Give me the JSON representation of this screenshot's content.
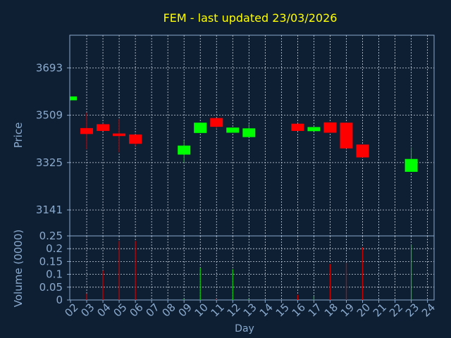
{
  "colors": {
    "background": "#0f1f33",
    "plot_border": "#8aaace",
    "grid": "#c8d4e0",
    "title": "#ffff00",
    "axis_text": "#8aaace",
    "bull": "#00ff00",
    "bear": "#ff0000",
    "wick_bull": "#00cc00",
    "wick_bear": "#cc0000"
  },
  "chart_data": [
    {
      "type": "candlestick",
      "title": "FEM - last updated 23/03/2026",
      "ylabel": "Price",
      "xlabel": "",
      "grid": true,
      "ylim": [
        3040,
        3820
      ],
      "yticks": [
        3141,
        3325,
        3509,
        3693
      ],
      "x_categories": [
        "02",
        "03",
        "04",
        "05",
        "06",
        "07",
        "08",
        "09",
        "10",
        "11",
        "12",
        "13",
        "14",
        "15",
        "16",
        "17",
        "18",
        "19",
        "20",
        "21",
        "22",
        "23",
        "24"
      ],
      "candles": [
        {
          "x": "02",
          "open": 3567,
          "close": 3582,
          "high": 3582,
          "low": 3567
        },
        {
          "x": "03",
          "open": 3459,
          "close": 3436,
          "high": 3519,
          "low": 3377
        },
        {
          "x": "04",
          "open": 3474,
          "close": 3448,
          "high": 3477,
          "low": 3448
        },
        {
          "x": "05",
          "open": 3438,
          "close": 3428,
          "high": 3494,
          "low": 3365
        },
        {
          "x": "06",
          "open": 3434,
          "close": 3398,
          "high": 3434,
          "low": 3390
        },
        {
          "x": "09",
          "open": 3356,
          "close": 3391,
          "high": 3411,
          "low": 3325
        },
        {
          "x": "10",
          "open": 3440,
          "close": 3480,
          "high": 3480,
          "low": 3440
        },
        {
          "x": "11",
          "open": 3498,
          "close": 3464,
          "high": 3498,
          "low": 3456
        },
        {
          "x": "12",
          "open": 3441,
          "close": 3461,
          "high": 3461,
          "low": 3441
        },
        {
          "x": "13",
          "open": 3424,
          "close": 3458,
          "high": 3474,
          "low": 3424
        },
        {
          "x": "16",
          "open": 3476,
          "close": 3448,
          "high": 3476,
          "low": 3448
        },
        {
          "x": "17",
          "open": 3447,
          "close": 3463,
          "high": 3463,
          "low": 3447
        },
        {
          "x": "18",
          "open": 3481,
          "close": 3441,
          "high": 3481,
          "low": 3441
        },
        {
          "x": "19",
          "open": 3480,
          "close": 3380,
          "high": 3480,
          "low": 3380
        },
        {
          "x": "20",
          "open": 3395,
          "close": 3345,
          "high": 3395,
          "low": 3345
        },
        {
          "x": "23",
          "open": 3289,
          "close": 3339,
          "high": 3384,
          "low": 3289
        }
      ]
    },
    {
      "type": "bar",
      "ylabel": "Volume (0000)",
      "xlabel": "Day",
      "grid": true,
      "ylim": [
        0,
        0.25
      ],
      "yticks": [
        0,
        0.05,
        0.1,
        0.15,
        0.2,
        0.25
      ],
      "ytick_labels": [
        "0",
        "0.05",
        "0.1",
        "0.15",
        "0.2",
        "0.25"
      ],
      "x_categories": [
        "02",
        "03",
        "04",
        "05",
        "06",
        "07",
        "08",
        "09",
        "10",
        "11",
        "12",
        "13",
        "14",
        "15",
        "16",
        "17",
        "18",
        "19",
        "20",
        "21",
        "22",
        "23",
        "24"
      ],
      "bars": [
        {
          "x": "02",
          "value": 0.0,
          "dir": "up"
        },
        {
          "x": "03",
          "value": 0.025,
          "dir": "down"
        },
        {
          "x": "04",
          "value": 0.115,
          "dir": "down"
        },
        {
          "x": "05",
          "value": 0.23,
          "dir": "down"
        },
        {
          "x": "06",
          "value": 0.23,
          "dir": "down"
        },
        {
          "x": "09",
          "value": 0.005,
          "dir": "up"
        },
        {
          "x": "10",
          "value": 0.125,
          "dir": "up"
        },
        {
          "x": "11",
          "value": 0.005,
          "dir": "down"
        },
        {
          "x": "12",
          "value": 0.12,
          "dir": "up"
        },
        {
          "x": "13",
          "value": 0.005,
          "dir": "up"
        },
        {
          "x": "16",
          "value": 0.02,
          "dir": "down"
        },
        {
          "x": "17",
          "value": 0.015,
          "dir": "up"
        },
        {
          "x": "18",
          "value": 0.14,
          "dir": "down"
        },
        {
          "x": "19",
          "value": 0.145,
          "dir": "down"
        },
        {
          "x": "20",
          "value": 0.205,
          "dir": "down"
        },
        {
          "x": "23",
          "value": 0.215,
          "dir": "up"
        }
      ]
    }
  ]
}
